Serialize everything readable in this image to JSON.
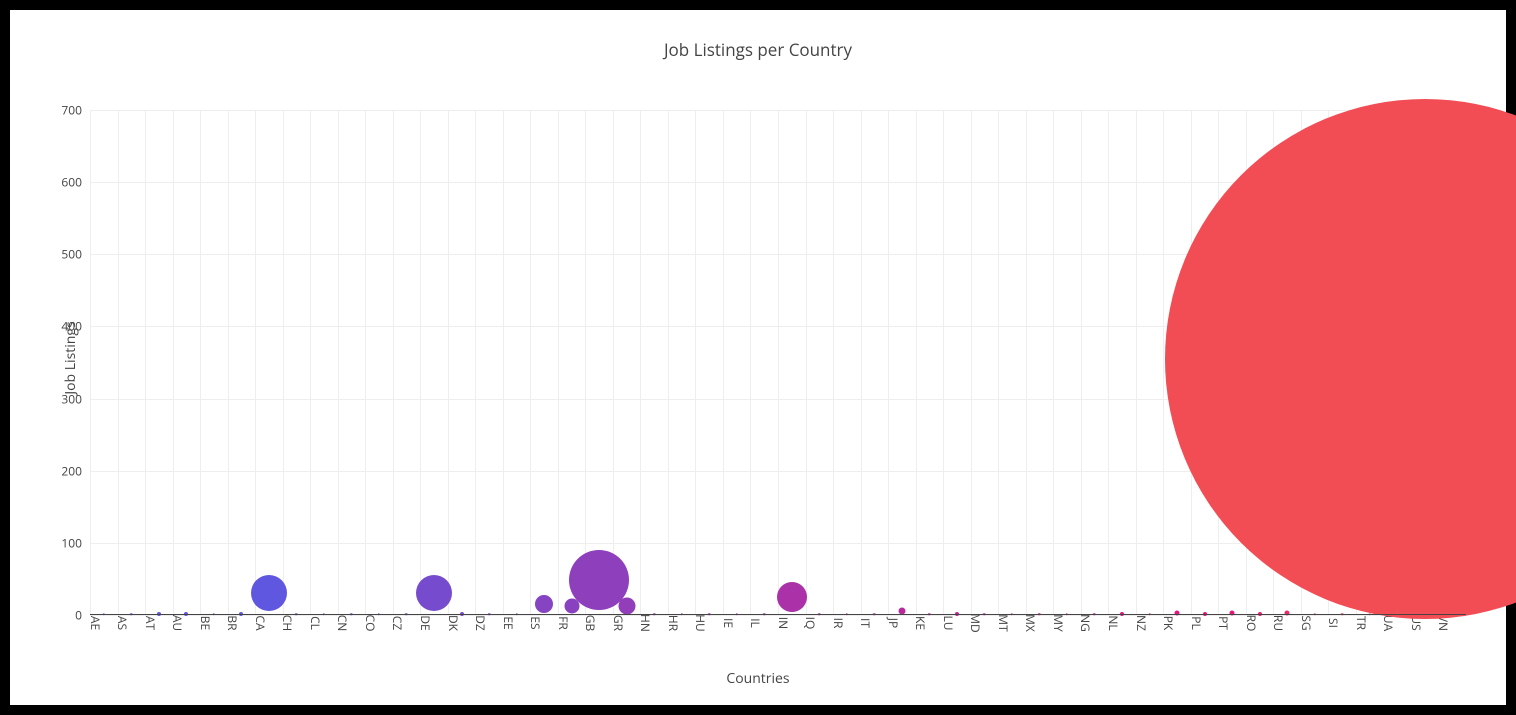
{
  "chart": {
    "type": "bubble",
    "title": "Job Listings per Country",
    "title_fontsize": 17,
    "title_color": "#444444",
    "x_axis_title": "Countries",
    "y_axis_title": "Job Listings",
    "axis_title_fontsize": 14,
    "tick_fontsize": 12,
    "tick_color": "#444444",
    "background_color": "#ffffff",
    "page_background": "#000000",
    "grid_color": "#eeeeee",
    "axis_line_color": "#444444",
    "y_min": 0,
    "y_max": 700,
    "y_tick_step": 100,
    "y_ticks": [
      0,
      100,
      200,
      300,
      400,
      500,
      600,
      700
    ],
    "countries": [
      "AE",
      "AS",
      "AT",
      "AU",
      "BE",
      "BR",
      "CA",
      "CH",
      "CL",
      "CN",
      "CO",
      "CZ",
      "DE",
      "DK",
      "DZ",
      "EE",
      "ES",
      "FR",
      "GB",
      "GR",
      "HN",
      "HR",
      "HU",
      "IE",
      "IL",
      "IN",
      "IQ",
      "IR",
      "IT",
      "JP",
      "KE",
      "LU",
      "MD",
      "MT",
      "MX",
      "MY",
      "NG",
      "NL",
      "NZ",
      "PK",
      "PL",
      "PT",
      "RO",
      "RU",
      "SG",
      "SI",
      "TR",
      "UA",
      "US",
      "VN"
    ],
    "x_tick_rotation": 90,
    "points": [
      {
        "country": "AE",
        "value": 1,
        "size": 2.5,
        "color": "#5f57e0"
      },
      {
        "country": "AS",
        "value": 1,
        "size": 2.5,
        "color": "#5f57e0"
      },
      {
        "country": "AT",
        "value": 2,
        "size": 4,
        "color": "#5f57e0"
      },
      {
        "country": "AU",
        "value": 2,
        "size": 4,
        "color": "#5f57e0"
      },
      {
        "country": "BE",
        "value": 1,
        "size": 2.5,
        "color": "#5f57e0"
      },
      {
        "country": "BR",
        "value": 2,
        "size": 4,
        "color": "#5f57e0"
      },
      {
        "country": "CA",
        "value": 30,
        "size": 36,
        "color": "#5f57e0"
      },
      {
        "country": "CH",
        "value": 1,
        "size": 2.5,
        "color": "#6255dd"
      },
      {
        "country": "CL",
        "value": 1,
        "size": 2.5,
        "color": "#6653da"
      },
      {
        "country": "CN",
        "value": 1,
        "size": 2.5,
        "color": "#6a51d7"
      },
      {
        "country": "CO",
        "value": 1,
        "size": 2.5,
        "color": "#6e4fd4"
      },
      {
        "country": "CZ",
        "value": 1,
        "size": 2.5,
        "color": "#724dd1"
      },
      {
        "country": "DE",
        "value": 30,
        "size": 36,
        "color": "#764bce"
      },
      {
        "country": "DK",
        "value": 2,
        "size": 4,
        "color": "#7a49cb"
      },
      {
        "country": "DZ",
        "value": 1,
        "size": 2.5,
        "color": "#7e47c8"
      },
      {
        "country": "EE",
        "value": 1,
        "size": 2.5,
        "color": "#8245c5"
      },
      {
        "country": "ES",
        "value": 15,
        "size": 18,
        "color": "#8643c2"
      },
      {
        "country": "FR",
        "value": 12,
        "size": 15,
        "color": "#8a41bf"
      },
      {
        "country": "GB",
        "value": 48,
        "size": 60,
        "color": "#8e3fbc"
      },
      {
        "country": "GR",
        "value": 13,
        "size": 17,
        "color": "#923db9"
      },
      {
        "country": "HN",
        "value": 1,
        "size": 2.5,
        "color": "#963bb6"
      },
      {
        "country": "HR",
        "value": 1,
        "size": 2.5,
        "color": "#9a39b3"
      },
      {
        "country": "HU",
        "value": 1,
        "size": 2.5,
        "color": "#9e37b0"
      },
      {
        "country": "IE",
        "value": 1,
        "size": 2.5,
        "color": "#a235ad"
      },
      {
        "country": "IL",
        "value": 1,
        "size": 2.5,
        "color": "#a633aa"
      },
      {
        "country": "IN",
        "value": 25,
        "size": 30,
        "color": "#aa31a7"
      },
      {
        "country": "IQ",
        "value": 1,
        "size": 2.5,
        "color": "#ae2fa4"
      },
      {
        "country": "IR",
        "value": 1,
        "size": 2.5,
        "color": "#b22da1"
      },
      {
        "country": "IT",
        "value": 1,
        "size": 2.5,
        "color": "#b62b9e"
      },
      {
        "country": "JP",
        "value": 5,
        "size": 7,
        "color": "#ba299b"
      },
      {
        "country": "KE",
        "value": 1,
        "size": 2.5,
        "color": "#be2798"
      },
      {
        "country": "LU",
        "value": 2,
        "size": 4,
        "color": "#c22595"
      },
      {
        "country": "MD",
        "value": 1,
        "size": 2.5,
        "color": "#c62392"
      },
      {
        "country": "MT",
        "value": 1,
        "size": 2.5,
        "color": "#ca218f"
      },
      {
        "country": "MX",
        "value": 1,
        "size": 2.5,
        "color": "#ce1f8c"
      },
      {
        "country": "MY",
        "value": 1,
        "size": 2.5,
        "color": "#d21d89"
      },
      {
        "country": "NG",
        "value": 1,
        "size": 2.5,
        "color": "#d61b86"
      },
      {
        "country": "NL",
        "value": 2,
        "size": 4,
        "color": "#da1983"
      },
      {
        "country": "NZ",
        "value": 1,
        "size": 2.5,
        "color": "#de1780"
      },
      {
        "country": "PK",
        "value": 3,
        "size": 5,
        "color": "#e2157d"
      },
      {
        "country": "PL",
        "value": 2,
        "size": 4,
        "color": "#e6137a"
      },
      {
        "country": "PT",
        "value": 3,
        "size": 5,
        "color": "#ea1177"
      },
      {
        "country": "RO",
        "value": 2,
        "size": 4,
        "color": "#ed1e6f"
      },
      {
        "country": "RU",
        "value": 3,
        "size": 5,
        "color": "#ee2968"
      },
      {
        "country": "SG",
        "value": 1,
        "size": 2.5,
        "color": "#ef3461"
      },
      {
        "country": "SI",
        "value": 1,
        "size": 2.5,
        "color": "#f03f5a"
      },
      {
        "country": "TR",
        "value": 1,
        "size": 2.5,
        "color": "#f14a53"
      },
      {
        "country": "UA",
        "value": 2,
        "size": 4,
        "color": "#f2544d"
      },
      {
        "country": "US",
        "value": 355,
        "size": 520,
        "color": "#f24c54"
      },
      {
        "country": "VN",
        "value": 1,
        "size": 2.5,
        "color": "#f35547"
      }
    ]
  }
}
